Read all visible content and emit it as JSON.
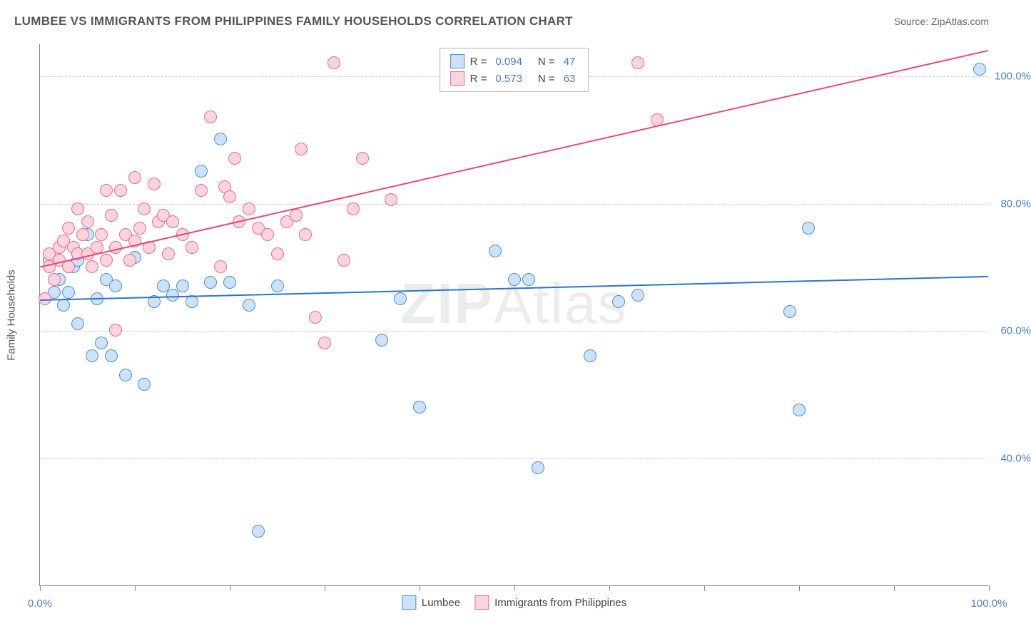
{
  "title": "LUMBEE VS IMMIGRANTS FROM PHILIPPINES FAMILY HOUSEHOLDS CORRELATION CHART",
  "source": "Source: ZipAtlas.com",
  "watermark": "ZIPAtlas",
  "y_axis_label": "Family Households",
  "chart": {
    "type": "scatter",
    "xlim": [
      0,
      100
    ],
    "ylim": [
      20,
      105
    ],
    "x_ticks": [
      0,
      10,
      20,
      30,
      40,
      50,
      60,
      70,
      80,
      90,
      100
    ],
    "x_tick_labels": {
      "0": "0.0%",
      "100": "100.0%"
    },
    "y_gridlines": [
      40,
      60,
      80,
      100
    ],
    "y_tick_labels": {
      "40": "40.0%",
      "60": "60.0%",
      "80": "80.0%",
      "100": "100.0%"
    },
    "label_color": "#4a7ec4",
    "grid_color": "#cccccc",
    "background_color": "#ffffff",
    "axis_color": "#888888",
    "marker_radius": 9,
    "series": [
      {
        "name": "Lumbee",
        "color_fill": "#cde2f6",
        "color_stroke": "#4a90d9",
        "R": "0.094",
        "N": "47",
        "trend": {
          "x1": 0,
          "y1": 64.8,
          "x2": 100,
          "y2": 68.5,
          "color": "#2f72c9",
          "width": 2
        },
        "points": [
          [
            1,
            71
          ],
          [
            1.5,
            66
          ],
          [
            2,
            68
          ],
          [
            2.5,
            64
          ],
          [
            3,
            66
          ],
          [
            3.5,
            70
          ],
          [
            4,
            61
          ],
          [
            4,
            71
          ],
          [
            5,
            75
          ],
          [
            5.5,
            56
          ],
          [
            6,
            65
          ],
          [
            6.5,
            58
          ],
          [
            7,
            68
          ],
          [
            7.5,
            56
          ],
          [
            8,
            67
          ],
          [
            9,
            53
          ],
          [
            10,
            71.5
          ],
          [
            11,
            51.5
          ],
          [
            12,
            64.5
          ],
          [
            13,
            67
          ],
          [
            14,
            65.5
          ],
          [
            15,
            67
          ],
          [
            16,
            64.5
          ],
          [
            17,
            85
          ],
          [
            18,
            67.5
          ],
          [
            19,
            90
          ],
          [
            20,
            67.5
          ],
          [
            22,
            64
          ],
          [
            23,
            28.5
          ],
          [
            25,
            67
          ],
          [
            36,
            58.5
          ],
          [
            38,
            65
          ],
          [
            40,
            48
          ],
          [
            48,
            72.5
          ],
          [
            50,
            68
          ],
          [
            51.5,
            68
          ],
          [
            52.5,
            38.5
          ],
          [
            58,
            56
          ],
          [
            61,
            64.5
          ],
          [
            63,
            65.5
          ],
          [
            79,
            63
          ],
          [
            80,
            47.5
          ],
          [
            81,
            76
          ],
          [
            99,
            101
          ]
        ]
      },
      {
        "name": "Immigrants from Philippines",
        "color_fill": "#fbd4dd",
        "color_stroke": "#e96b8c",
        "R": "0.573",
        "N": "63",
        "trend": {
          "x1": 0,
          "y1": 70,
          "x2": 100,
          "y2": 104,
          "color": "#e54b78",
          "width": 2
        },
        "points": [
          [
            0.5,
            65
          ],
          [
            1,
            70
          ],
          [
            1,
            72
          ],
          [
            1.5,
            68
          ],
          [
            2,
            73
          ],
          [
            2,
            71
          ],
          [
            2.5,
            74
          ],
          [
            3,
            76
          ],
          [
            3,
            70
          ],
          [
            3.5,
            73
          ],
          [
            4,
            72
          ],
          [
            4,
            79
          ],
          [
            4.5,
            75
          ],
          [
            5,
            72
          ],
          [
            5,
            77
          ],
          [
            5.5,
            70
          ],
          [
            6,
            73
          ],
          [
            6.5,
            75
          ],
          [
            7,
            82
          ],
          [
            7,
            71
          ],
          [
            7.5,
            78
          ],
          [
            8,
            73
          ],
          [
            8,
            60
          ],
          [
            8.5,
            82
          ],
          [
            9,
            75
          ],
          [
            9.5,
            71
          ],
          [
            10,
            74
          ],
          [
            10,
            84
          ],
          [
            10.5,
            76
          ],
          [
            11,
            79
          ],
          [
            11.5,
            73
          ],
          [
            12,
            83
          ],
          [
            12.5,
            77
          ],
          [
            13,
            78
          ],
          [
            13.5,
            72
          ],
          [
            14,
            77
          ],
          [
            15,
            75
          ],
          [
            16,
            73
          ],
          [
            17,
            82
          ],
          [
            18,
            93.5
          ],
          [
            19,
            70
          ],
          [
            19.5,
            82.5
          ],
          [
            20,
            81
          ],
          [
            20.5,
            87
          ],
          [
            21,
            77
          ],
          [
            22,
            79
          ],
          [
            23,
            76
          ],
          [
            24,
            75
          ],
          [
            25,
            72
          ],
          [
            26,
            77
          ],
          [
            27,
            78
          ],
          [
            27.5,
            88.5
          ],
          [
            28,
            75
          ],
          [
            29,
            62
          ],
          [
            30,
            58
          ],
          [
            31,
            102
          ],
          [
            32,
            71
          ],
          [
            33,
            79
          ],
          [
            34,
            87
          ],
          [
            37,
            80.5
          ],
          [
            63,
            102
          ],
          [
            65,
            93
          ]
        ]
      }
    ]
  },
  "legend_top": [
    {
      "swatch_fill": "#cde2f6",
      "swatch_stroke": "#4a90d9",
      "r_label": "R =",
      "r_val": "0.094",
      "n_label": "N =",
      "n_val": "47"
    },
    {
      "swatch_fill": "#fbd4dd",
      "swatch_stroke": "#e96b8c",
      "r_label": "R =",
      "r_val": "0.573",
      "n_label": "N =",
      "n_val": "63"
    }
  ],
  "legend_bottom": [
    {
      "swatch_fill": "#cde2f6",
      "swatch_stroke": "#4a90d9",
      "label": "Lumbee"
    },
    {
      "swatch_fill": "#fbd4dd",
      "swatch_stroke": "#e96b8c",
      "label": "Immigrants from Philippines"
    }
  ]
}
